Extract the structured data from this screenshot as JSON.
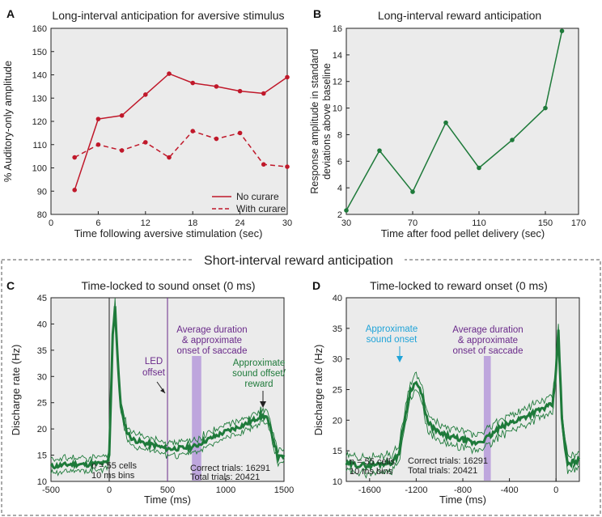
{
  "section_title": "Short-interval reward anticipation",
  "chart_data": [
    {
      "panel": "A",
      "type": "line",
      "title": "Long-interval anticipation for aversive stimulus",
      "xlabel": "Time following aversive stimulation (sec)",
      "ylabel": "% Auditory-only amplitude",
      "xlim": [
        0,
        30
      ],
      "ylim": [
        80,
        160
      ],
      "xticks": [
        0,
        6,
        12,
        18,
        24,
        30
      ],
      "yticks": [
        80,
        90,
        100,
        110,
        120,
        130,
        140,
        150,
        160
      ],
      "x": [
        3,
        6,
        9,
        12,
        15,
        18,
        21,
        24,
        27,
        30
      ],
      "series": [
        {
          "name": "No curare",
          "style": "solid",
          "color": "#c0182a",
          "values": [
            90.5,
            121,
            122.5,
            131.5,
            140.5,
            136.5,
            135,
            133,
            132,
            139
          ]
        },
        {
          "name": "With curare",
          "style": "dashed",
          "color": "#c0182a",
          "values": [
            104.5,
            110,
            107.5,
            111,
            104.5,
            115.8,
            112.5,
            115,
            101.5,
            100.5
          ]
        }
      ],
      "legend_position": "bottom-right"
    },
    {
      "panel": "B",
      "type": "line",
      "title": "Long-interval reward anticipation",
      "xlabel": "Time after food pellet delivery (sec)",
      "ylabel": [
        "Response amplitude in standard",
        "deviations above baseline"
      ],
      "xlim": [
        30,
        170
      ],
      "ylim": [
        2,
        16
      ],
      "xticks": [
        30,
        70,
        110,
        150,
        170
      ],
      "yticks": [
        2,
        4,
        6,
        8,
        10,
        12,
        14,
        16
      ],
      "series": [
        {
          "name": "Response",
          "color": "#1e7a3a",
          "x": [
            30,
            50,
            70,
            90,
            110,
            130,
            150,
            160
          ],
          "values": [
            2.3,
            6.8,
            3.7,
            8.9,
            5.5,
            7.6,
            10.0,
            15.8
          ]
        }
      ]
    },
    {
      "panel": "C",
      "type": "line",
      "title": "Time-locked to sound onset (0 ms)",
      "xlabel": "Time (ms)",
      "ylabel": "Discharge rate (Hz)",
      "xlim": [
        -500,
        1500
      ],
      "ylim": [
        10,
        45
      ],
      "xticks": [
        -500,
        0,
        500,
        1000,
        1500
      ],
      "yticks": [
        10,
        15,
        20,
        25,
        30,
        35,
        40,
        45
      ],
      "series": [
        {
          "name": "Mean discharge rate",
          "color": "#1e7a3a",
          "x": [
            -500,
            -400,
            -300,
            -200,
            -100,
            -20,
            0,
            30,
            50,
            70,
            100,
            150,
            200,
            300,
            400,
            500,
            600,
            700,
            750,
            800,
            900,
            1000,
            1100,
            1200,
            1250,
            1300,
            1350,
            1400,
            1450,
            1500
          ],
          "values": [
            12.8,
            13.1,
            13.3,
            13.2,
            13.4,
            13.5,
            14.8,
            38,
            43.5,
            34,
            24,
            19.5,
            18,
            17.3,
            16.8,
            16.2,
            16.3,
            16.5,
            16.8,
            17.5,
            18.5,
            19.5,
            20.3,
            21.2,
            21.8,
            22.5,
            22.3,
            18.8,
            14.5,
            14.8
          ],
          "sem": 1.2
        }
      ],
      "vlines": [
        0,
        500
      ],
      "shaded_interval": [
        710,
        790
      ],
      "annotations": {
        "led_offset": [
          "LED",
          "offset"
        ],
        "saccade": [
          "Average duration",
          "& approximate",
          "onset of saccade"
        ],
        "reward": [
          "Approximate",
          "sound offset/",
          "reward"
        ],
        "cells": [
          "n = 55 cells",
          "10 ms bins"
        ],
        "trials": [
          "Correct trials: 16291",
          "Total trials: 20421"
        ]
      }
    },
    {
      "panel": "D",
      "type": "line",
      "title": "Time-locked to reward onset (0 ms)",
      "xlabel": "Time (ms)",
      "ylabel": "Discharge rate (Hz)",
      "xlim": [
        -1800,
        200
      ],
      "ylim": [
        10,
        40
      ],
      "xticks": [
        -1600,
        -1200,
        -800,
        -400,
        0
      ],
      "yticks": [
        10,
        15,
        20,
        25,
        30,
        35,
        40
      ],
      "series": [
        {
          "name": "Mean discharge rate",
          "color": "#1e7a3a",
          "x": [
            -1800,
            -1700,
            -1600,
            -1500,
            -1400,
            -1350,
            -1300,
            -1250,
            -1200,
            -1150,
            -1100,
            -1000,
            -900,
            -800,
            -700,
            -620,
            -560,
            -500,
            -400,
            -300,
            -200,
            -100,
            -30,
            0,
            20,
            50,
            100,
            150,
            200
          ],
          "values": [
            12.8,
            12.7,
            12.6,
            12.9,
            13.2,
            14.5,
            20,
            25,
            26.2,
            24,
            19.5,
            17.8,
            17.2,
            16.8,
            16.2,
            16.8,
            17.5,
            18.5,
            19.5,
            20.3,
            21.2,
            22,
            22.5,
            28,
            35,
            20,
            12.6,
            13.2,
            13.5
          ],
          "sem": 1.3
        }
      ],
      "vlines": [
        0
      ],
      "shaded_interval": [
        -620,
        -560
      ],
      "annotations": {
        "sound": [
          "Approximate",
          "sound onset"
        ],
        "saccade": [
          "Average duration",
          "& approximate",
          "onset of saccade"
        ],
        "cells": [
          "n = 55 cells",
          "10 ms bins"
        ],
        "trials": [
          "Correct trials: 16291",
          "Total trials: 20421"
        ]
      }
    }
  ],
  "colors": {
    "red": "#c0182a",
    "green": "#1e7a3a",
    "purple": "#6a2a8a",
    "lavender": "#b99fdc",
    "cyan": "#1fa3d8",
    "plot_bg": "#ebebeb"
  }
}
